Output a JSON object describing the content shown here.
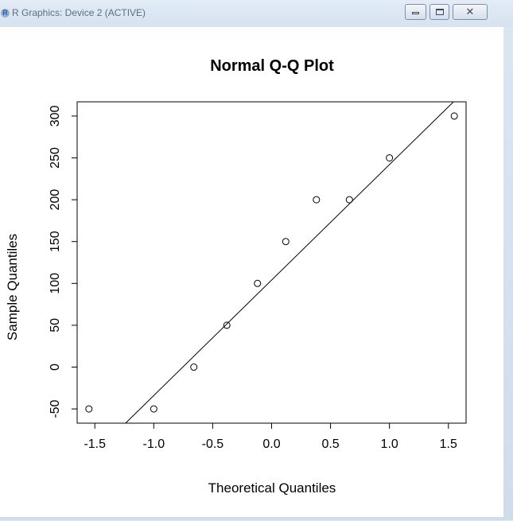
{
  "window": {
    "title": "R Graphics: Device 2 (ACTIVE)",
    "app_icon_letter": "R",
    "controls": {
      "minimize_glyph": "minimize-icon",
      "maximize_glyph": "maximize-icon",
      "close_glyph": "close-icon"
    }
  },
  "chart_data": {
    "type": "scatter",
    "title": "Normal Q-Q Plot",
    "xlabel": "Theoretical Quantiles",
    "ylabel": "Sample Quantiles",
    "xlim": [
      -1.65,
      1.65
    ],
    "ylim": [
      -67,
      317
    ],
    "x_ticks": [
      -1.5,
      -1.0,
      -0.5,
      0.0,
      0.5,
      1.0,
      1.5
    ],
    "x_tick_labels": [
      "-1.5",
      "-1.0",
      "-0.5",
      "0.0",
      "0.5",
      "1.0",
      "1.5"
    ],
    "y_ticks": [
      -50,
      0,
      50,
      100,
      150,
      200,
      250,
      300
    ],
    "y_tick_labels": [
      "-50",
      "0",
      "50",
      "100",
      "150",
      "200",
      "250",
      "300"
    ],
    "grid": false,
    "points": [
      {
        "x": -1.55,
        "y": -50
      },
      {
        "x": -1.0,
        "y": -50
      },
      {
        "x": -0.66,
        "y": 0
      },
      {
        "x": -0.38,
        "y": 50
      },
      {
        "x": -0.12,
        "y": 100
      },
      {
        "x": 0.12,
        "y": 150
      },
      {
        "x": 0.38,
        "y": 200
      },
      {
        "x": 0.66,
        "y": 200
      },
      {
        "x": 1.0,
        "y": 250
      },
      {
        "x": 1.55,
        "y": 300
      }
    ],
    "reference_line": {
      "slope": 138,
      "intercept": 104
    }
  }
}
